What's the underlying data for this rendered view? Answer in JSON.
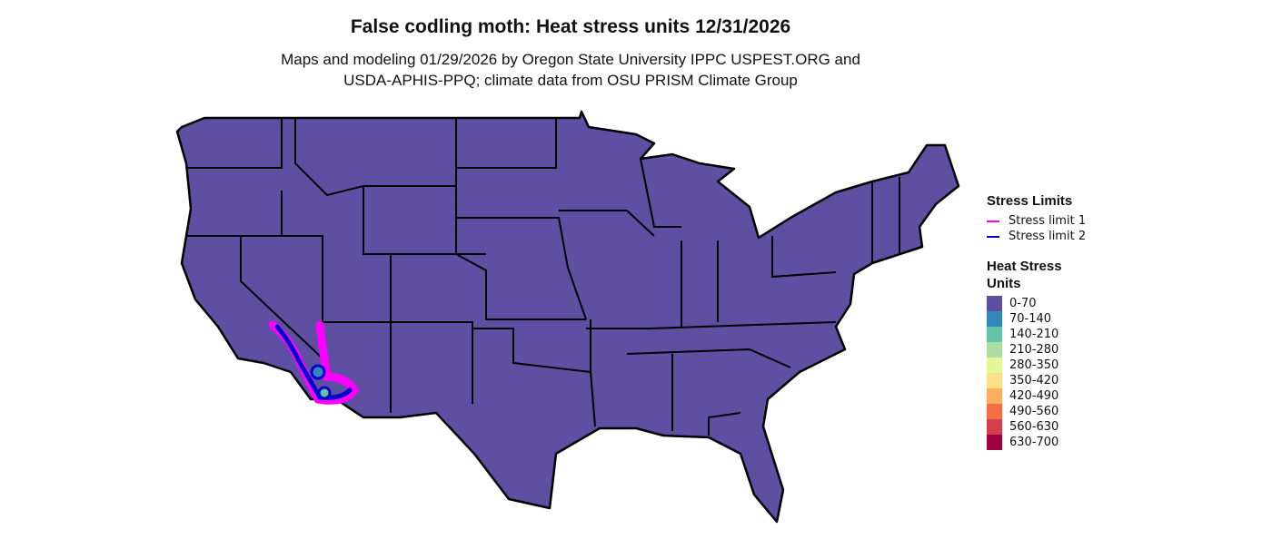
{
  "title": "False codling moth: Heat stress units 12/31/2026",
  "subtitle_line1": "Maps and modeling 01/29/2026 by Oregon State University IPPC USPEST.ORG and",
  "subtitle_line2": "USDA-APHIS-PPQ; climate data from OSU PRISM Climate Group",
  "legend": {
    "stress_title": "Stress Limits",
    "stress_items": [
      {
        "label": "Stress limit 1",
        "color": "#ff00ff"
      },
      {
        "label": "Stress limit 2",
        "color": "#0000cc"
      }
    ],
    "heat_title_1": "Heat Stress",
    "heat_title_2": "Units",
    "heat_items": [
      {
        "label": "0-70",
        "color": "#5e4fa2"
      },
      {
        "label": "70-140",
        "color": "#3288bd"
      },
      {
        "label": "140-210",
        "color": "#66c2a5"
      },
      {
        "label": "210-280",
        "color": "#abdda4"
      },
      {
        "label": "280-350",
        "color": "#e6f598"
      },
      {
        "label": "350-420",
        "color": "#fee08b"
      },
      {
        "label": "420-490",
        "color": "#fdae61"
      },
      {
        "label": "490-560",
        "color": "#f46d43"
      },
      {
        "label": "560-630",
        "color": "#d53e4f"
      },
      {
        "label": "630-700",
        "color": "#9e0142"
      }
    ]
  },
  "map": {
    "fill": "#5e4fa2",
    "region": "Contiguous United States"
  }
}
